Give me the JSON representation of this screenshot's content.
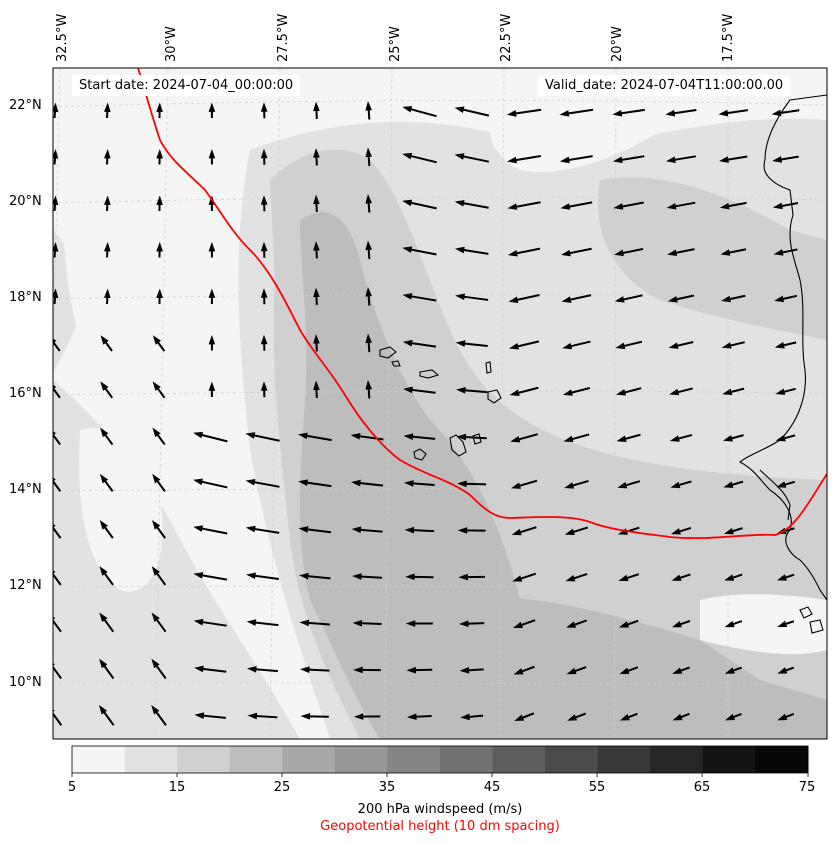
{
  "header": {
    "start_date": "Start date: 2024-07-04_00:00:00",
    "valid_date": "Valid_date: 2024-07-04T11:00:00.00"
  },
  "map": {
    "lon_labels": [
      "32.5°W",
      "30°W",
      "27.5°W",
      "25°W",
      "22.5°W",
      "20°W",
      "17.5°W"
    ],
    "lat_labels": [
      "22°N",
      "20°N",
      "18°N",
      "16°N",
      "14°N",
      "12°N",
      "10°N"
    ],
    "shading_colors": [
      "#f5f5f5",
      "#e2e2e2",
      "#d0d0d0",
      "#bdbdbd",
      "#a9a9a9",
      "#979797",
      "#858585",
      "#727272",
      "#5e5e5e",
      "#4b4b4b",
      "#383838",
      "#262626",
      "#141414",
      "#070707"
    ],
    "contour_color": "#ff0000",
    "coast_color": "#000000"
  },
  "colorbar": {
    "tick_labels": [
      "5",
      "15",
      "25",
      "35",
      "45",
      "55",
      "65",
      "75"
    ],
    "title": "200 hPa windspeed (m/s)",
    "subtitle": "Geopotential height (10 dm spacing)",
    "subtitle_color": "#ff0000"
  }
}
